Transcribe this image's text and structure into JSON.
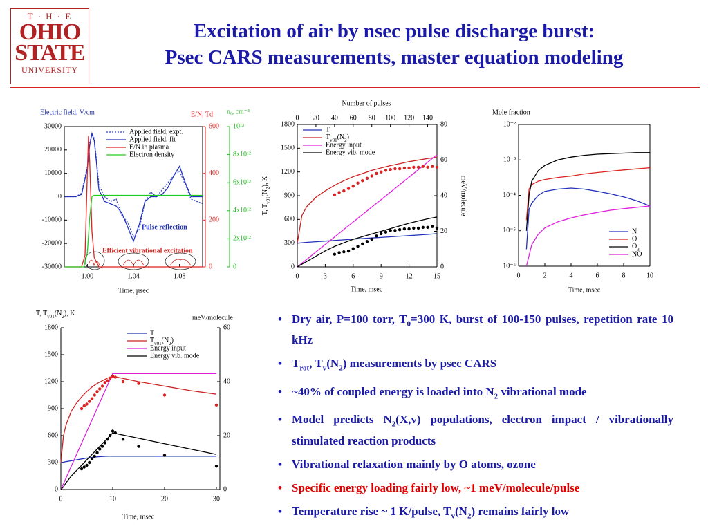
{
  "header": {
    "logo": [
      "T · H · E",
      "OHIO",
      "STATE",
      "UNIVERSITY"
    ],
    "title": [
      "Excitation of air by nsec pulse discharge burst:",
      "Psec CARS measurements, master equation modeling"
    ]
  },
  "bullet_color": "#1a1aa6",
  "bullets": [
    {
      "runs": [
        "Dry air, P=100 torr, T",
        "0",
        "=300 K, burst of 100-150 pulses, repetition rate 10 kHz"
      ]
    },
    {
      "runs": [
        "T",
        "rot",
        ", T",
        "v",
        "(N",
        "2",
        ") measurements by psec CARS"
      ]
    },
    {
      "runs": [
        "~40% of coupled energy is loaded into N",
        "2",
        " vibrational mode"
      ]
    },
    {
      "runs": [
        "Model predicts N",
        "2",
        "(X,v) populations, electron impact / vibrationally stimulated reaction products"
      ]
    },
    {
      "runs": [
        "Vibrational relaxation mainly by O atoms, ozone"
      ]
    },
    {
      "runs": [
        "Specific energy loading fairly low, ~1 meV/molecule/pulse"
      ],
      "color": "#e00000"
    },
    {
      "runs": [
        "Temperature rise ~ 1 K/pulse, T",
        "v",
        "(N",
        "2",
        ") remains fairly low"
      ]
    }
  ],
  "chart_data": [
    {
      "type": "line",
      "ylabel": "Electric field, V/cm",
      "y2label": "E/N, Td",
      "y3label": "nₑ, cm⁻³",
      "xlabel": "Time, µsec",
      "annotations": [
        "Pulse reflection",
        "Efficient vibrational excitation"
      ],
      "legend": "upper right",
      "xlim": [
        0.98,
        1.1
      ],
      "xticks": [
        {
          "value": 1,
          "label": "1.00"
        },
        1.04,
        1.08
      ],
      "ylim": [
        -30000,
        30000
      ],
      "yticks": [
        -30000,
        -20000,
        -10000,
        0,
        10000,
        20000,
        30000
      ],
      "y2lim": [
        0,
        600
      ],
      "y2ticks": [
        0,
        200,
        400,
        600
      ],
      "y2color": "#dd2222",
      "y3lim": [
        0,
        10000000000000.0
      ],
      "y3ticks": [
        0,
        {
          "value": 2000000000000.0,
          "label": "2x10¹²"
        },
        {
          "value": 4000000000000.0,
          "label": "4x10¹²"
        },
        {
          "value": 6000000000000.0,
          "label": "6x10¹²"
        },
        {
          "value": 8000000000000.0,
          "label": "8x10¹²"
        },
        {
          "value": 10000000000000.0,
          "label": "10¹³"
        }
      ],
      "y3color": "#22bb22",
      "x": [
        0.98,
        0.99,
        0.995,
        1.0,
        1.002,
        1.004,
        1.006,
        1.008,
        1.01,
        1.015,
        1.02,
        1.025,
        1.03,
        1.035,
        1.04,
        1.045,
        1.05,
        1.055,
        1.06,
        1.065,
        1.07,
        1.075,
        1.08,
        1.085,
        1.09,
        1.1
      ],
      "series": [
        {
          "name": "Applied field, expt.",
          "color": "#3344cc",
          "dash": "2,2",
          "values": [
            0,
            0,
            1500,
            13000,
            23000,
            27000,
            25000,
            15000,
            5000,
            0,
            -2000,
            -1000,
            -8000,
            -11000,
            -17000,
            -14000,
            -2000,
            2000,
            0,
            3000,
            6000,
            9000,
            11000,
            5000,
            -1000,
            -3000
          ]
        },
        {
          "name": "Applied field, fit",
          "color": "#2233bb",
          "values": [
            0,
            0,
            1000,
            12000,
            22000,
            27000,
            24000,
            14000,
            3000,
            -2000,
            -3000,
            -4000,
            -7000,
            -13000,
            -19000,
            -12000,
            -2000,
            0,
            0,
            1000,
            4000,
            9000,
            13000,
            6000,
            0,
            0
          ]
        },
        {
          "name": "E/N in plasma",
          "color": "#dd2222",
          "axis": "y2",
          "x": [
            0.98,
            0.995,
            0.998,
            1.0,
            1.001,
            1.002,
            1.004,
            1.006,
            1.01,
            1.1
          ],
          "values": [
            0,
            0,
            50,
            400,
            560,
            450,
            150,
            40,
            0,
            0
          ]
        },
        {
          "name": "Electron density",
          "color": "#22cc22",
          "axis": "y3",
          "x": [
            0.98,
            0.997,
            1.0,
            1.002,
            1.004,
            1.006,
            1.1
          ],
          "values": [
            0,
            0,
            1000000000000.0,
            3500000000000.0,
            5000000000000.0,
            5100000000000.0,
            5100000000000.0
          ]
        }
      ]
    },
    {
      "type": "line",
      "x2label": "Number of pulses",
      "xlabel": "Time, msec",
      "ylabel": [
        "T, T",
        "v01",
        "(N",
        "2",
        "), K"
      ],
      "y2label": "meV/molecule",
      "legend": "upper left",
      "xlim": [
        0,
        15
      ],
      "xticks": [
        0,
        3,
        6,
        9,
        12,
        15
      ],
      "x2lim": [
        0,
        150
      ],
      "x2ticks": [
        0,
        20,
        40,
        60,
        80,
        100,
        120,
        140
      ],
      "ylim": [
        0,
        1800
      ],
      "yticks": [
        0,
        300,
        600,
        900,
        1200,
        1500,
        1800
      ],
      "y2lim": [
        0,
        80
      ],
      "y2ticks": [
        0,
        20,
        40,
        60,
        80
      ],
      "x": [
        0,
        0.5,
        1,
        2,
        3,
        4,
        5,
        6,
        7,
        8,
        9,
        10,
        11,
        12,
        13,
        14,
        15
      ],
      "series": [
        {
          "name": "T",
          "color": "#2233bb",
          "values": [
            300,
            305,
            310,
            318,
            326,
            334,
            342,
            350,
            358,
            365,
            372,
            380,
            388,
            395,
            403,
            411,
            420
          ]
        },
        {
          "name": [
            "T",
            "v01",
            "(N",
            "2",
            ")"
          ],
          "color": "#cc2222",
          "values": [
            300,
            650,
            760,
            880,
            960,
            1030,
            1090,
            1140,
            1180,
            1220,
            1250,
            1280,
            1305,
            1330,
            1350,
            1370,
            1385
          ]
        },
        {
          "name": "Energy input",
          "color": "#dd22dd",
          "axis": "y2",
          "values": [
            0,
            2.1,
            4.2,
            8.4,
            12.6,
            16.8,
            21,
            25.2,
            29.4,
            33.6,
            37.8,
            42,
            46.2,
            50.4,
            54.6,
            58.8,
            63
          ]
        },
        {
          "name": "Energy vib. mode",
          "color": "#000000",
          "axis": "y2",
          "values": [
            0,
            1.5,
            3,
            6,
            9,
            11.5,
            13.5,
            15.5,
            17,
            18.5,
            20,
            21.5,
            23,
            24.5,
            25.8,
            27,
            28
          ]
        },
        {
          "type": "scatter",
          "color": "#dd2222",
          "x": [
            4,
            4.5,
            5,
            5.5,
            6,
            6.5,
            7,
            7.5,
            8,
            8.5,
            9,
            9.5,
            10,
            10.5,
            11,
            11.5,
            12,
            12.5,
            13,
            13.5,
            14,
            14.5,
            15
          ],
          "values": [
            910,
            940,
            960,
            990,
            1020,
            1060,
            1090,
            1120,
            1150,
            1180,
            1200,
            1220,
            1230,
            1240,
            1240,
            1250,
            1250,
            1260,
            1260,
            1270,
            1260,
            1270,
            1260
          ]
        },
        {
          "type": "scatter",
          "color": "#000000",
          "x": [
            4,
            4.5,
            5,
            5.5,
            6,
            6.5,
            7,
            7.5,
            8,
            8.5,
            9,
            9.5,
            10,
            10.5,
            11,
            11.5,
            12,
            12.5,
            13,
            13.5,
            14,
            14.5,
            15
          ],
          "values": [
            160,
            180,
            190,
            200,
            230,
            260,
            290,
            320,
            350,
            390,
            420,
            440,
            460,
            460,
            470,
            480,
            480,
            490,
            490,
            500,
            500,
            510,
            490
          ]
        }
      ]
    },
    {
      "type": "line",
      "ylabel": "Mole fraction",
      "xlabel": "Time, msec",
      "legend": "lower right",
      "yscale": "log",
      "xlim": [
        0,
        10
      ],
      "xticks": [
        0,
        2,
        4,
        6,
        8,
        10
      ],
      "ylim": [
        1e-06,
        0.01
      ],
      "yticks": [
        {
          "value": 1e-06,
          "label": "10⁻⁶"
        },
        {
          "value": 1e-05,
          "label": "10⁻⁵"
        },
        {
          "value": 0.0001,
          "label": "10⁻⁴"
        },
        {
          "value": 0.001,
          "label": "10⁻³"
        },
        {
          "value": 0.01,
          "label": "10⁻²"
        }
      ],
      "x": [
        0.6,
        0.8,
        1,
        1.5,
        2,
        3,
        4,
        5,
        6,
        7,
        8,
        9,
        10
      ],
      "series": [
        {
          "name": "N",
          "color": "#2233bb",
          "values": [
            3e-06,
            4e-05,
            6e-05,
            0.0001,
            0.00013,
            0.00015,
            0.00016,
            0.00015,
            0.00013,
            0.00011,
            9e-05,
            7e-05,
            5e-05
          ]
        },
        {
          "name": "O",
          "color": "#dd2222",
          "values": [
            2e-05,
            0.00015,
            0.0002,
            0.00025,
            0.00028,
            0.00032,
            0.00035,
            0.0004,
            0.00044,
            0.00048,
            0.00052,
            0.00056,
            0.0006
          ]
        },
        {
          "name": [
            "O",
            "3"
          ],
          "color": "#000000",
          "values": [
            1e-05,
            0.0001,
            0.00025,
            0.0005,
            0.0007,
            0.001,
            0.0012,
            0.00135,
            0.00145,
            0.0015,
            0.00155,
            0.0016,
            0.0016
          ]
        },
        {
          "name": "NO",
          "color": "#dd22dd",
          "values": [
            1e-06,
            2e-06,
            4e-06,
            8e-06,
            1.2e-05,
            1.8e-05,
            2.3e-05,
            2.8e-05,
            3.3e-05,
            3.8e-05,
            4.2e-05,
            4.6e-05,
            5e-05
          ]
        }
      ]
    },
    {
      "type": "line",
      "ylabel": [
        "T, T",
        "v01",
        "(N",
        "2",
        "), K"
      ],
      "y2label": "meV/molecule",
      "xlabel": "Time, msec",
      "legend": "upper right",
      "xlim": [
        0,
        30
      ],
      "xticks": [
        0,
        10,
        20,
        30
      ],
      "ylim": [
        0,
        1800
      ],
      "yticks": [
        0,
        300,
        600,
        900,
        1200,
        1500,
        1800
      ],
      "y2lim": [
        0,
        60
      ],
      "y2ticks": [
        0,
        20,
        40,
        60
      ],
      "x": [
        0,
        0.5,
        1,
        2,
        3,
        4,
        5,
        6,
        7,
        8,
        9,
        10,
        15,
        20,
        25,
        30
      ],
      "series": [
        {
          "name": "T",
          "color": "#2233bb",
          "values": [
            300,
            305,
            310,
            320,
            330,
            340,
            350,
            358,
            364,
            368,
            370,
            370,
            370,
            370,
            370,
            370
          ]
        },
        {
          "name": [
            "T",
            "v01",
            "(N",
            "2",
            ")"
          ],
          "color": "#cc2222",
          "values": [
            300,
            600,
            720,
            870,
            960,
            1030,
            1090,
            1140,
            1180,
            1210,
            1240,
            1260,
            1200,
            1150,
            1100,
            1060
          ]
        },
        {
          "name": "Energy input",
          "color": "#dd22dd",
          "axis": "y2",
          "values": [
            0,
            2.15,
            4.3,
            8.6,
            12.9,
            17.2,
            21.5,
            25.8,
            30.1,
            34.4,
            38.7,
            43,
            43,
            43,
            43,
            43
          ]
        },
        {
          "name": "Energy vib. mode",
          "color": "#000000",
          "axis": "y2",
          "values": [
            0,
            1,
            2.5,
            5,
            7,
            9,
            11,
            13,
            15,
            17,
            19,
            21,
            19,
            17,
            15,
            13
          ]
        },
        {
          "type": "scatter",
          "color": "#dd2222",
          "x": [
            4,
            4.5,
            5,
            5.5,
            6,
            6.5,
            7,
            7.5,
            8,
            8.5,
            9,
            9.5,
            10,
            10.5,
            12,
            15,
            20,
            30
          ],
          "values": [
            900,
            930,
            950,
            980,
            1010,
            1050,
            1090,
            1120,
            1150,
            1190,
            1210,
            1240,
            1260,
            1250,
            1200,
            1180,
            1050,
            940
          ]
        },
        {
          "type": "scatter",
          "color": "#000000",
          "x": [
            4,
            4.5,
            5,
            5.5,
            6,
            6.5,
            7,
            7.5,
            8,
            8.5,
            9,
            9.5,
            10,
            10.5,
            12,
            15,
            20,
            30
          ],
          "values": [
            230,
            250,
            270,
            300,
            340,
            370,
            410,
            450,
            480,
            520,
            560,
            600,
            650,
            630,
            560,
            480,
            380,
            260
          ]
        }
      ]
    }
  ]
}
